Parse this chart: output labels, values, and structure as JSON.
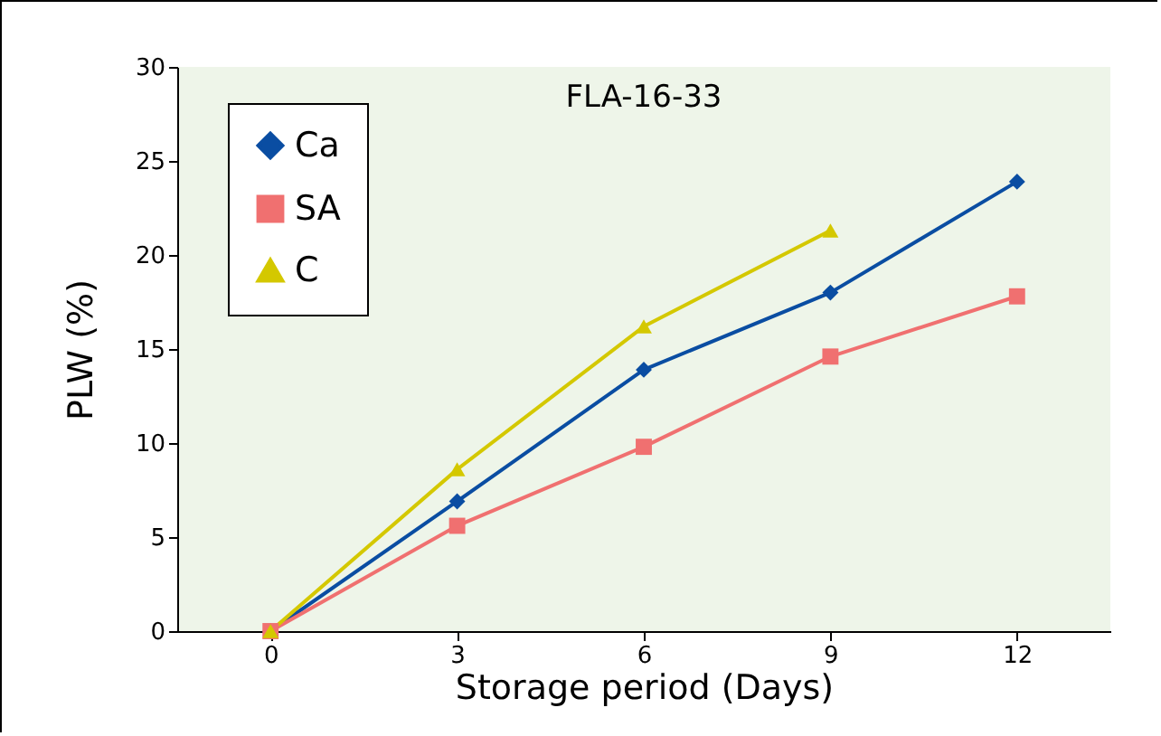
{
  "chart_data": {
    "type": "line",
    "title": "FLA-16-33",
    "xlabel": "Storage period (Days)",
    "ylabel": "PLW (%)",
    "categories": [
      "0",
      "3",
      "6",
      "9",
      "12"
    ],
    "series": [
      {
        "name": "Ca",
        "color": "#0a4da2",
        "marker": "diamond",
        "values": [
          0,
          6.9,
          13.9,
          18.0,
          23.9
        ]
      },
      {
        "name": "SA",
        "color": "#f07070",
        "marker": "square",
        "values": [
          0,
          5.6,
          9.8,
          14.6,
          17.8
        ]
      },
      {
        "name": "C",
        "color": "#d4c800",
        "marker": "triangle",
        "values": [
          0,
          8.6,
          16.2,
          21.3,
          null
        ]
      }
    ],
    "ylim": [
      0,
      30
    ],
    "yticks": [
      0,
      5,
      10,
      15,
      20,
      25,
      30
    ],
    "grid": false,
    "legend": "top left"
  }
}
